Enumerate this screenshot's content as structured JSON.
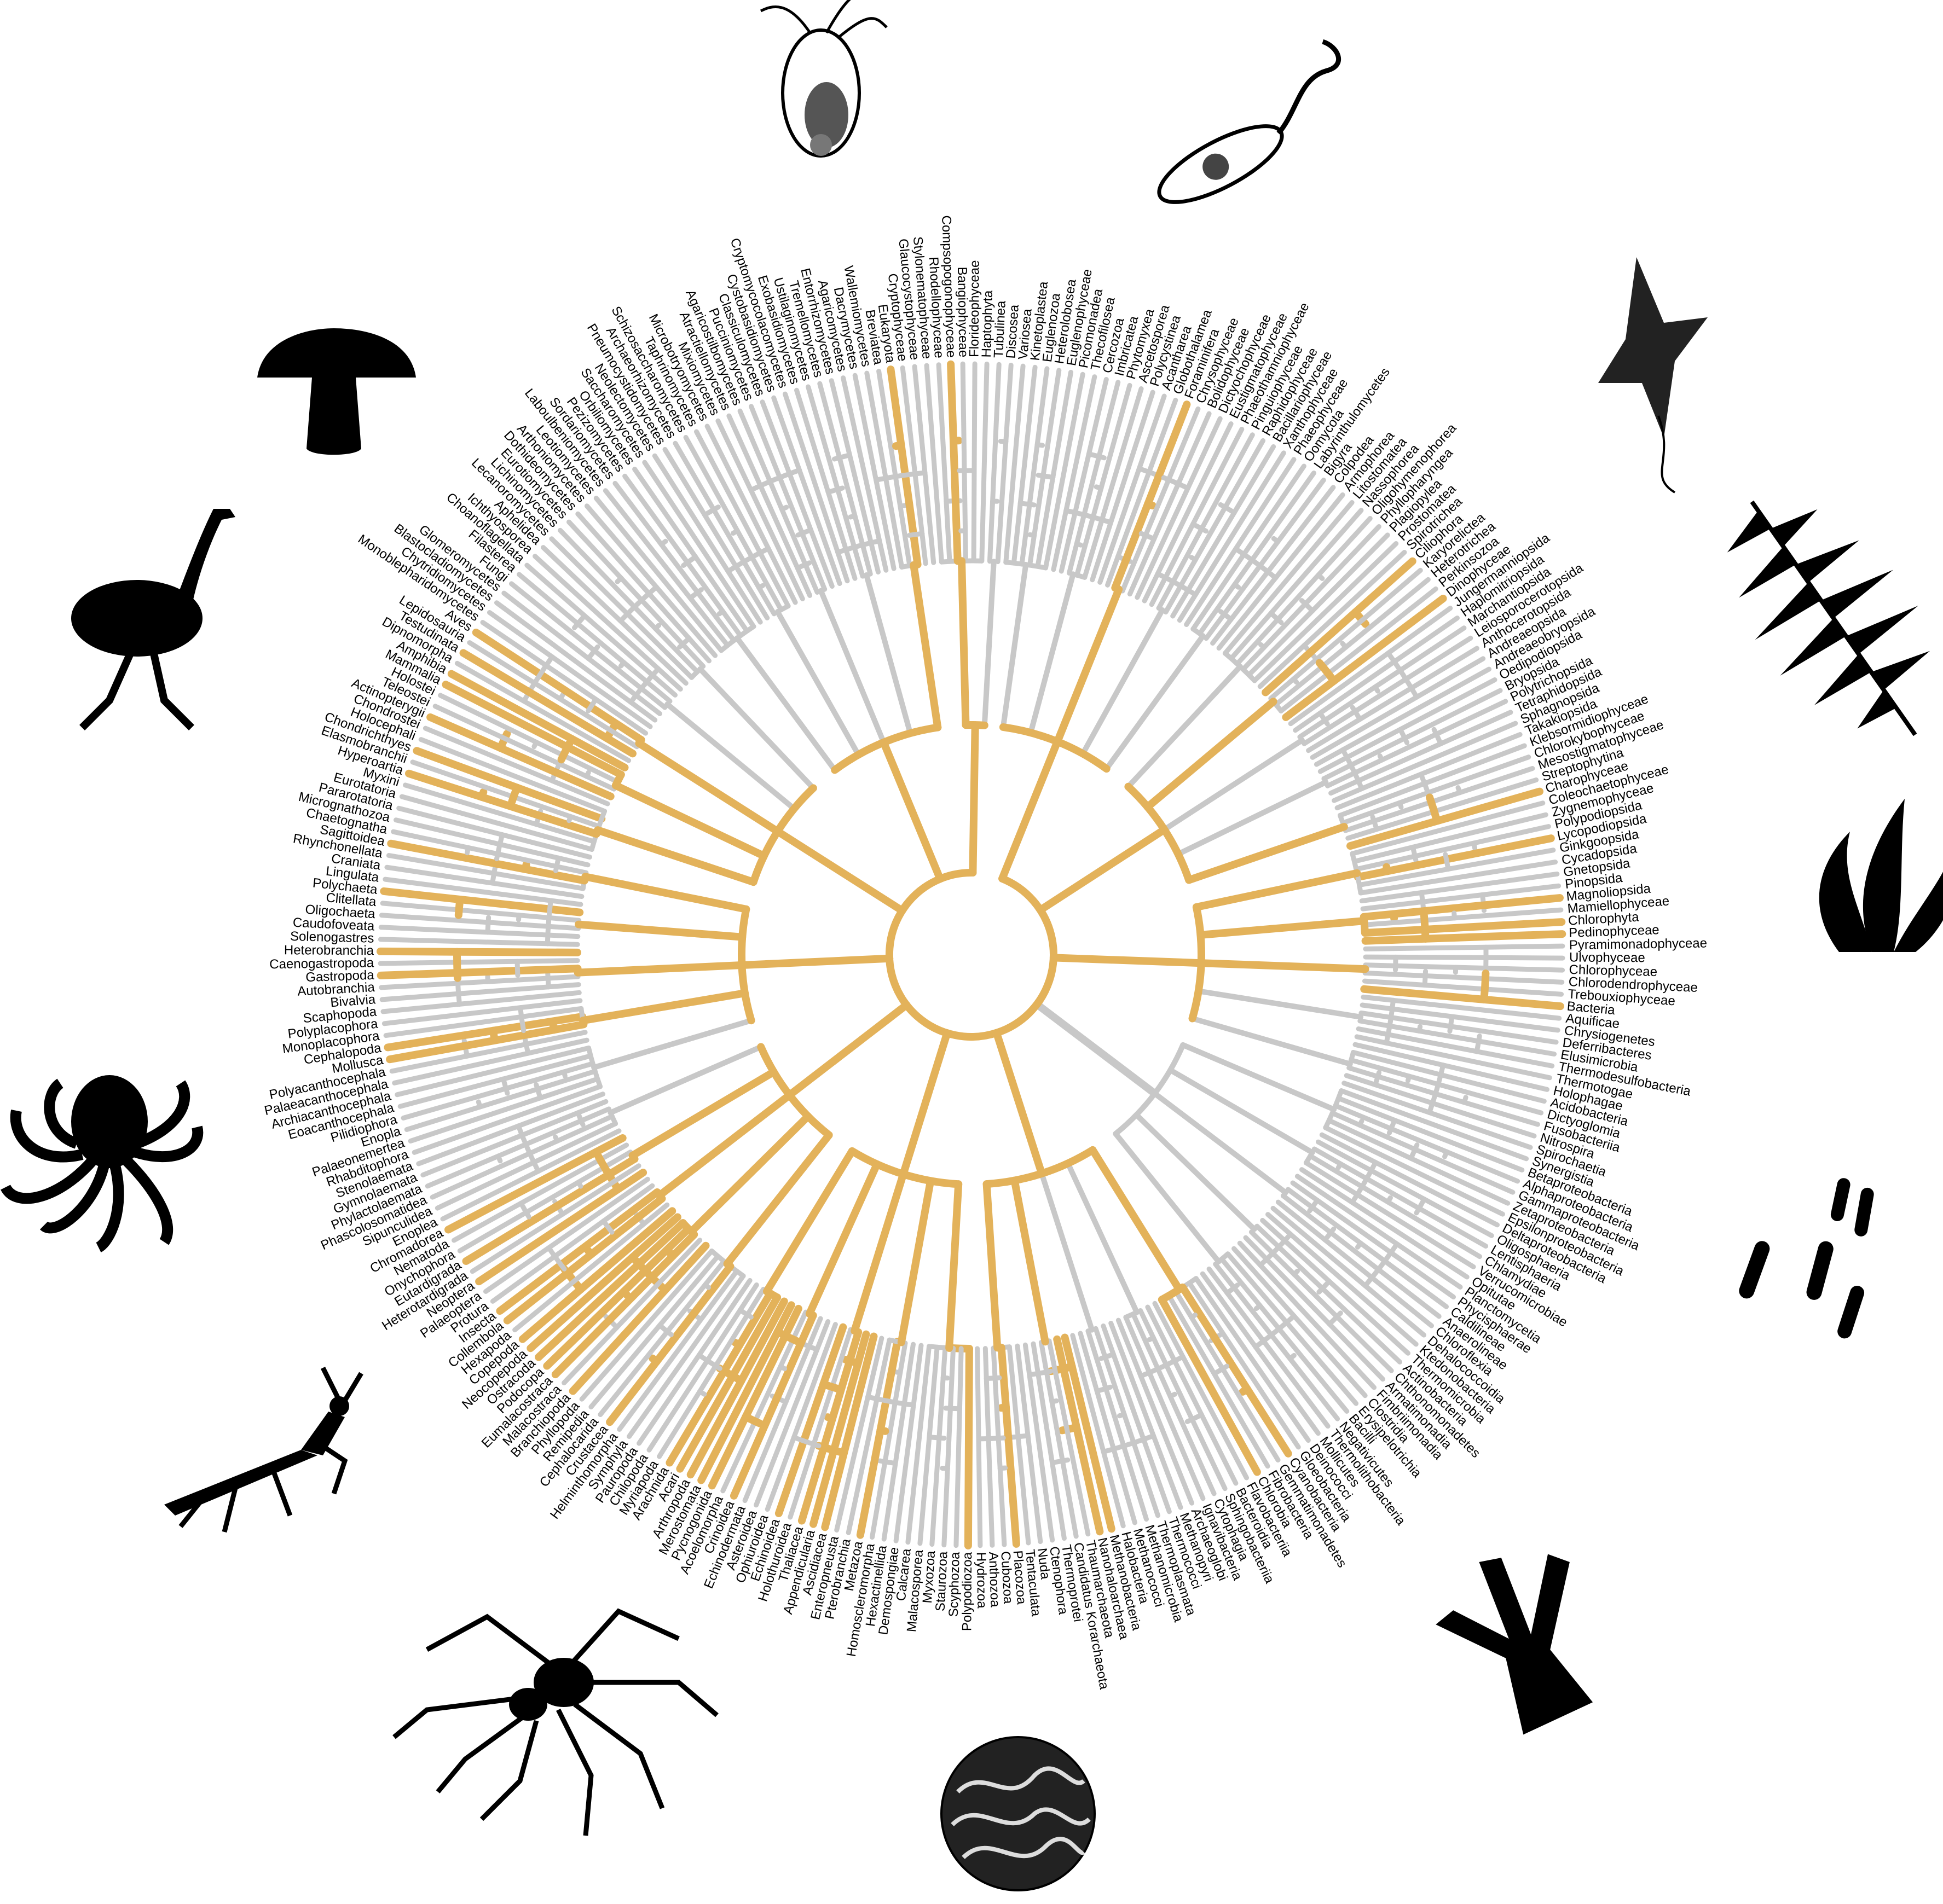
{
  "colors": {
    "highlight": "#E3B25A",
    "branch": "#C8C8C8",
    "label": "#000000",
    "silhouette": "#000000"
  },
  "labels_cw_from_top": [
    "Variosea",
    "Kinetoplastea",
    "Euglenozoa",
    "Heterolobosea",
    "Euglenophyceae",
    "Picomonadea",
    "Thecofilosea",
    "Cercozoa",
    "Imbricatea",
    "Phytomyxea",
    "Ascetosporea",
    "Polycystinea",
    "Acantharea",
    "Globothalamea",
    "Foraminifera",
    "Chrysophyceae",
    "Bolidophyceae",
    "Dictyochophyceae",
    "Eustigmatophyceae",
    "Phaeothamniophyceae",
    "Pinguiophyceae",
    "Raphidophyceae",
    "Bacillariophyceae",
    "Xanthophyceae",
    "Phaeophyceae",
    "Oomycota",
    "Labyrinthulomycetes",
    "Bigyra",
    "Colpodea",
    "Armophorea",
    "Litostomatea",
    "Nassophorea",
    "Oligohymenophorea",
    "Phyllopharyngea",
    "Plagiopylea",
    "Prostomatea",
    "Spirotrichea",
    "Ciliophora",
    "Karyorelictea",
    "Heterotrichea",
    "Perkinsozoa",
    "Dinophyceae",
    "Jungermanniopsida",
    "Haplomitriopsida",
    "Marchantiopsida",
    "Leiosporocerotopsida",
    "Anthocerotopsida",
    "Andreaeopsida",
    "Andreaeobryopsida",
    "Oedipodiopsida",
    "Bryopsida",
    "Polytrichopsida",
    "Tetraphidopsida",
    "Sphagnopsida",
    "Takakiopsida",
    "Klebsormidiophyceae",
    "Chlorokybophyceae",
    "Mesostigmatophyceae",
    "Streptophytina",
    "Charophyceae",
    "Coleochaetophyceae",
    "Zygnemophyceae",
    "Polypodiopsida",
    "Lycopodiopsida",
    "Ginkgoopsida",
    "Cycadopsida",
    "Gnetopsida",
    "Pinopsida",
    "Magnoliopsida",
    "Mamiellophyceae",
    "Chlorophyta",
    "Pedinophyceae",
    "Pyramimonadophyceae",
    "Ulvophyceae",
    "Chlorophyceae",
    "Chlorodendrophyceae",
    "Trebouxiophyceae",
    "Bacteria",
    "Aquificae",
    "Chrysiogenetes",
    "Deferribacteres",
    "Elusimicrobia",
    "Thermodesulfobacteria",
    "Thermotogae",
    "Holophagae",
    "Acidobacteria",
    "Dictyoglomia",
    "Fusobacteriia",
    "Nitrospira",
    "Spirochaetia",
    "Synergistia",
    "Betaproteobacteria",
    "Alphaproteobacteria",
    "Gammaproteobacteria",
    "Zetaproteobacteria",
    "Epsilonproteobacteria",
    "Deltaproteobacteria",
    "Oligosphaeria",
    "Lentisphaeria",
    "Chlamydiae",
    "Verrucomicrobiae",
    "Opitutae",
    "Planctomycetia",
    "Phycisphaerae",
    "Caldilineae",
    "Anaerolineae",
    "Chloroflexia",
    "Dehalococcoidia",
    "Ktedonobacteria",
    "Thermomicrobia",
    "Actinobacteria",
    "Chthonomonadetes",
    "Armatimonadia",
    "Fimbriimonadia",
    "Clostridia",
    "Erysipelotrichia",
    "Bacilli",
    "Negativicutes",
    "Thermolithobacteria",
    "Mollicutes",
    "Deinococci",
    "Gloeobacteria",
    "Cyanobacteria",
    "Gemmatimonadetes",
    "Fibrobacteria",
    "Chlorobia",
    "Flavobacteriia",
    "Bacteroidia",
    "Sphingobacteriia",
    "Cytophagia",
    "Ignavibacteria",
    "Archaeoglobi",
    "Methanopyri",
    "Thermococci",
    "Thermoplasmata",
    "Methanomicrobia",
    "Methanococci",
    "Halobacteria",
    "Methanobacteria",
    "Nanohaloarchaea",
    "Thaumarchaeota",
    "Candidatus Korarchaeota",
    "Thermoprotei",
    "Ctenophora",
    "Nuda",
    "Tentaculata",
    "Placozoa",
    "Cubozoa",
    "Anthozoa",
    "Hydrozoa",
    "Polypodiozoa",
    "Scyphozoa",
    "Staurozoa",
    "Myxozoa",
    "Malacosporea",
    "Calcarea",
    "Demospongiae",
    "Hexactinellida",
    "Homoscleromorpha",
    "Metazoa",
    "Pterobranchia",
    "Enteropneusta",
    "Ascidiacea",
    "Appendicularia",
    "Thaliacea",
    "Holothuroidea",
    "Echinoidea",
    "Ophiuroidea",
    "Asteroidea",
    "Echinodermata",
    "Crinoidea",
    "Acoelomorpha",
    "Pycnogonida",
    "Merostomata",
    "Arthropoda",
    "Acari",
    "Arachnida",
    "Myriapoda",
    "Chilopoda",
    "Pauropoda",
    "Symphyla",
    "Helminthomorpha",
    "Crustacea",
    "Cephalocarida",
    "Remipedia",
    "Phyllopoda",
    "Branchiopoda",
    "Malacostraca",
    "Eumalacostraca",
    "Podocopa",
    "Ostracoda",
    "Neocopepoda",
    "Copepoda",
    "Hexapoda",
    "Collembola",
    "Insecta",
    "Protura",
    "Palaeoptera",
    "Neoptera",
    "Heterotardigrada",
    "Eutardigrada",
    "Onychophora",
    "Nematoda",
    "Chromadorea",
    "Enoplea",
    "Sipunculidea",
    "Phascolosomatidea",
    "Phylactolaemata",
    "Gymnolaemata",
    "Stenolaemata",
    "Rhabditophora",
    "Palaeonemertea",
    "Enopla",
    "Pilidiophora",
    "Eoacanthocephala",
    "Archiacanthocephala",
    "Palaeacanthocephala",
    "Polyacanthocephala",
    "Mollusca",
    "Cephalopoda",
    "Monoplacophora",
    "Polyplacophora",
    "Scaphopoda",
    "Bivalvia",
    "Autobranchia",
    "Gastropoda",
    "Caenogastropoda",
    "Heterobranchia",
    "Solenogastres",
    "Caudofoveata",
    "Oligochaeta",
    "Clitellata",
    "Polychaeta",
    "Lingulata",
    "Craniata",
    "Rhynchonellata",
    "Sagittoidea",
    "Chaetognatha",
    "Micrognathozoa",
    "Pararotatoria",
    "Eurotatoria",
    "Myxini",
    "Hyperoartia",
    "Elasmobranchii",
    "Chondrichthyes",
    "Holocephali",
    "Chondrostei",
    "Actinopterygii",
    "Teleostei",
    "Holostei",
    "Mammalia",
    "Amphibia",
    "Dipnomorpha",
    "Testudinata",
    "Lepidosauria",
    "Aves",
    "Monoblepharidomycetes",
    "Chytridiomycetes",
    "Blastocladiomycetes",
    "Glomeromycetes",
    "Fungi",
    "Filasterea",
    "Choanoflagellata",
    "Ichthyosporea",
    "Aphelidea",
    "Lecanoromycetes",
    "Lichinomycetes",
    "Eurotiomycetes",
    "Dothideomycetes",
    "Arthoniomycetes",
    "Leotiomycetes",
    "Laboulbeniomycetes",
    "Sordariomycetes",
    "Pezizomycetes",
    "Orbiliomycetes",
    "Saccharomycetes",
    "Neolectomycetes",
    "Pneumocystidomycetes",
    "Archaeorhizomycetes",
    "Schizosaccharomycetes",
    "Taphrinomycetes",
    "Microbotryomycetes",
    "Mixiomycetes",
    "Atractiellomycetes",
    "Agaricostilbomycetes",
    "Pucciniomycetes",
    "Classiculomycetes",
    "Cystobasidiomycetes",
    "Cryptomycocolacomycetes",
    "Exobasidiomycetes",
    "Ustilaginomycetes",
    "Tremellomycetes",
    "Entorrhizomycetes",
    "Agaricomycetes",
    "Dacrymycetes",
    "Wallemiomycetes",
    "Breviatea",
    "Eukaryota",
    "Cryptophyceae",
    "Glaucocystophyceae",
    "Stylonematophyceae",
    "Rhodellophyceae",
    "Compsopogonophyceae",
    "Bangiophyceae",
    "Florideophyceae",
    "Haptophyta",
    "Tubulinea",
    "Discosea"
  ],
  "highlighted_labels": [
    "Foraminifera",
    "Ciliophora",
    "Dinophyceae",
    "Charophyceae",
    "Lycopodiopsida",
    "Magnoliopsida",
    "Chlorophyta",
    "Pedinophyceae",
    "Bacteria",
    "Cyanobacteria",
    "Chlorobia",
    "Methanobacteria",
    "Nanohaloarchaea",
    "Placozoa",
    "Polypodiozoa",
    "Metazoa",
    "Ascidiacea",
    "Appendicularia",
    "Thaliacea",
    "Echinoidea",
    "Crinoidea",
    "Pycnogonida",
    "Merostomata",
    "Arthropoda",
    "Acari",
    "Arachnida",
    "Crustacea",
    "Branchiopoda",
    "Eumalacostraca",
    "Podocopa",
    "Ostracoda",
    "Neocopepoda",
    "Copepoda",
    "Collembola",
    "Insecta",
    "Neoptera",
    "Eutardigrada",
    "Chromadorea",
    "Mollusca",
    "Cephalopoda",
    "Gastropoda",
    "Heterobranchia",
    "Polychaeta",
    "Sagittoidea",
    "Hyperoartia",
    "Chondrichthyes",
    "Actinopterygii",
    "Mammalia",
    "Amphibia",
    "Testudinata",
    "Aves",
    "Eukaryota",
    "Compsopogonophyceae"
  ],
  "silhouettes": [
    {
      "name": "rotifer-illustration"
    },
    {
      "name": "euglena-illustration"
    },
    {
      "name": "dinoflagellate-illustration"
    },
    {
      "name": "fern-silhouette"
    },
    {
      "name": "seaweed-silhouette"
    },
    {
      "name": "bacteria-silhouette"
    },
    {
      "name": "coral-silhouette"
    },
    {
      "name": "brain-coral-illustration"
    },
    {
      "name": "spider-silhouette"
    },
    {
      "name": "mantis-silhouette"
    },
    {
      "name": "octopus-silhouette"
    },
    {
      "name": "emu-silhouette"
    },
    {
      "name": "mushroom-silhouette"
    }
  ]
}
